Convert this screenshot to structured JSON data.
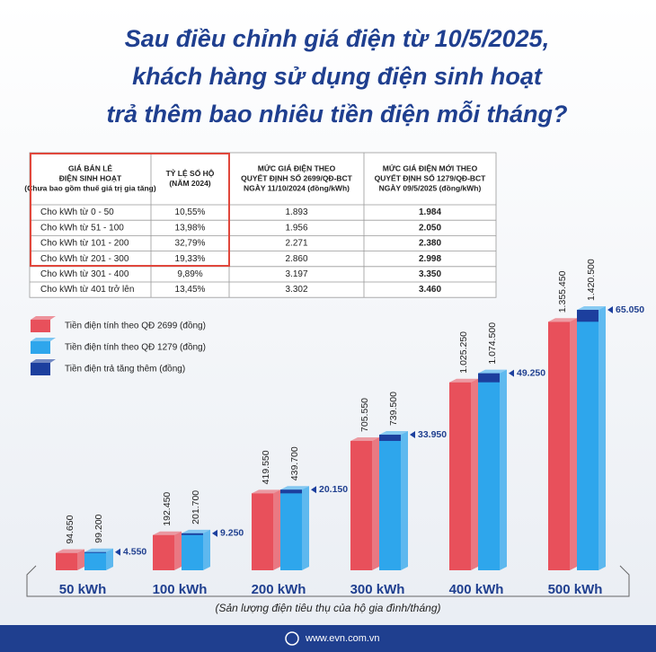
{
  "header": {
    "title": [
      "Sau điều chỉnh giá điện từ 10/5/2025,",
      "khách hàng sử dụng điện sinh hoạt",
      "trả thêm bao nhiêu tiền điện mỗi tháng?"
    ]
  },
  "table": {
    "headers": [
      [
        "GIÁ BÁN LẺ",
        "ĐIỆN SINH HOẠT",
        "(Chưa bao gồm thuế giá trị gia tăng)"
      ],
      [
        "TỶ LỆ SỐ HỘ",
        "(NĂM 2024)"
      ],
      [
        "MỨC GIÁ ĐIỆN THEO",
        "QUYẾT ĐỊNH SỐ 2699/QĐ-BCT",
        "NGÀY 11/10/2024 (đồng/kWh)"
      ],
      [
        "MỨC GIÁ ĐIỆN MỚI THEO",
        "QUYẾT ĐỊNH SỐ 1279/QĐ-BCT",
        "NGÀY 09/5/2025 (đồng/kWh)"
      ]
    ],
    "rows": [
      [
        "Cho kWh từ 0 - 50",
        "10,55%",
        "1.893",
        "1.984"
      ],
      [
        "Cho kWh từ  51 - 100",
        "13,98%",
        "1.956",
        "2.050"
      ],
      [
        "Cho kWh từ 101 - 200",
        "32,79%",
        "2.271",
        "2.380"
      ],
      [
        "Cho kWh từ 201 - 300",
        "19,33%",
        "2.860",
        "2.998"
      ],
      [
        "Cho kWh từ 301 - 400",
        "9,89%",
        "3.197",
        "3.350"
      ],
      [
        "Cho kWh từ 401 trở lên",
        "13,45%",
        "3.302",
        "3.460"
      ]
    ]
  },
  "chart_data": {
    "type": "bar",
    "categories": [
      "50 kWh",
      "100 kWh",
      "200 kWh",
      "300 kWh",
      "400 kWh",
      "500 kWh"
    ],
    "series": [
      {
        "name": "Tiền điện tính theo QĐ 2699 (đồng)",
        "color": "#e8505b",
        "values": [
          94650,
          192450,
          419550,
          705550,
          1025250,
          1355450
        ],
        "value_labels": [
          "94.650",
          "192.450",
          "419.550",
          "705.550",
          "1.025.250",
          "1.355.450"
        ]
      },
      {
        "name": "Tiền điện tính theo QĐ 1279 (đồng)",
        "color": "#2ea6ec",
        "values": [
          99200,
          201700,
          439700,
          739500,
          1074500,
          1420500
        ],
        "value_labels": [
          "99.200",
          "201.700",
          "439.700",
          "739.500",
          "1.074.500",
          "1.420.500"
        ]
      },
      {
        "name": "Tiền điện trả tăng thêm (đồng)",
        "color": "#1c3f9e",
        "values": [
          4550,
          9250,
          20150,
          33950,
          49250,
          65050
        ],
        "value_labels": [
          "4.550",
          "9.250",
          "20.150",
          "33.950",
          "49.250",
          "65.050"
        ]
      }
    ],
    "xlabel": "(Sản lượng điện tiêu thụ của hộ gia đình/tháng)"
  },
  "footer": {
    "site": "www.evn.com.vn"
  }
}
